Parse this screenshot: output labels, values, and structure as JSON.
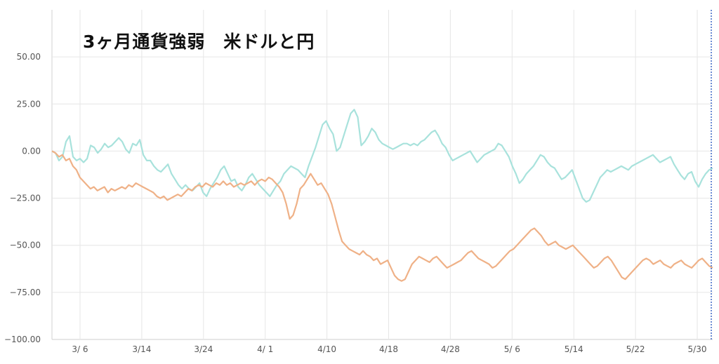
{
  "chart_data": {
    "type": "line",
    "title": "3ヶ月通貨強弱　米ドルと円",
    "xlabel": "",
    "ylabel": "",
    "ylim": [
      -100,
      75
    ],
    "yticks": [
      50,
      25,
      0,
      -25,
      -50,
      -75,
      -100
    ],
    "ytick_labels": [
      "50.00",
      "25.00",
      "0.00",
      "−25.00",
      "−50.00",
      "−75.00",
      "−100.00"
    ],
    "xticks": [
      "3/ 6",
      "3/14",
      "3/24",
      "4/ 1",
      "4/10",
      "4/18",
      "4/28",
      "5/ 6",
      "5/14",
      "5/22",
      "5/30"
    ],
    "grid": true,
    "colors": {
      "usd": "#a8e2dc",
      "jpy": "#efb187",
      "marker": "#3a66c6",
      "grid": "#e6e6e6"
    },
    "series": [
      {
        "key": "usd",
        "values": [
          0,
          -1,
          -5,
          -3,
          5,
          8,
          -3,
          -5,
          -4,
          -6,
          -4,
          3,
          2,
          -1,
          1,
          4,
          2,
          3,
          5,
          7,
          5,
          1,
          -1,
          4,
          3,
          6,
          -2,
          -5,
          -5,
          -8,
          -10,
          -11,
          -9,
          -7,
          -12,
          -15,
          -18,
          -20,
          -18,
          -20,
          -21,
          -19,
          -17,
          -22,
          -24,
          -20,
          -17,
          -14,
          -10,
          -8,
          -12,
          -16,
          -15,
          -19,
          -21,
          -18,
          -14,
          -12,
          -15,
          -18,
          -20,
          -22,
          -24,
          -21,
          -18,
          -16,
          -12,
          -10,
          -8,
          -9,
          -10,
          -12,
          -14,
          -8,
          -3,
          2,
          8,
          14,
          16,
          12,
          9,
          0,
          2,
          8,
          14,
          20,
          22,
          18,
          3,
          5,
          8,
          12,
          10,
          6,
          4,
          3,
          2,
          1,
          2,
          3,
          4,
          4,
          3,
          4,
          3,
          5,
          6,
          8,
          10,
          11,
          8,
          4,
          2,
          -2,
          -5,
          -4,
          -3,
          -2,
          -1,
          0,
          -3,
          -6,
          -4,
          -2,
          -1,
          0,
          1,
          4,
          3,
          0,
          -3,
          -8,
          -12,
          -17,
          -15,
          -12,
          -10,
          -8,
          -5,
          -2,
          -3,
          -6,
          -8,
          -9,
          -12,
          -15,
          -14,
          -12,
          -10,
          -15,
          -20,
          -25,
          -27,
          -26,
          -22,
          -18,
          -14,
          -12,
          -10,
          -11,
          -10,
          -9,
          -8,
          -9,
          -10,
          -8,
          -7,
          -6,
          -5,
          -4,
          -3,
          -2,
          -4,
          -6,
          -5,
          -4,
          -3,
          -7,
          -10,
          -13,
          -15,
          -12,
          -11,
          -16,
          -19,
          -15,
          -12,
          -10,
          -9
        ]
      },
      {
        "key": "jpy",
        "values": [
          0,
          -1,
          -3,
          -2,
          -5,
          -4,
          -8,
          -10,
          -14,
          -16,
          -18,
          -20,
          -19,
          -21,
          -20,
          -19,
          -22,
          -20,
          -21,
          -20,
          -19,
          -20,
          -18,
          -19,
          -17,
          -18,
          -19,
          -20,
          -21,
          -22,
          -24,
          -25,
          -24,
          -26,
          -25,
          -24,
          -23,
          -24,
          -22,
          -20,
          -21,
          -19,
          -18,
          -19,
          -17,
          -18,
          -19,
          -17,
          -18,
          -16,
          -18,
          -17,
          -19,
          -18,
          -17,
          -18,
          -17,
          -16,
          -18,
          -16,
          -15,
          -16,
          -14,
          -15,
          -17,
          -19,
          -22,
          -28,
          -36,
          -34,
          -28,
          -20,
          -18,
          -15,
          -12,
          -15,
          -18,
          -17,
          -20,
          -23,
          -28,
          -35,
          -42,
          -48,
          -50,
          -52,
          -53,
          -54,
          -55,
          -53,
          -55,
          -56,
          -58,
          -57,
          -60,
          -59,
          -58,
          -62,
          -66,
          -68,
          -69,
          -68,
          -64,
          -60,
          -58,
          -56,
          -57,
          -58,
          -59,
          -57,
          -56,
          -58,
          -60,
          -62,
          -61,
          -60,
          -59,
          -58,
          -56,
          -54,
          -53,
          -55,
          -57,
          -58,
          -59,
          -60,
          -62,
          -61,
          -59,
          -57,
          -55,
          -53,
          -52,
          -50,
          -48,
          -46,
          -44,
          -42,
          -41,
          -43,
          -45,
          -48,
          -50,
          -49,
          -48,
          -50,
          -51,
          -52,
          -51,
          -50,
          -52,
          -54,
          -56,
          -58,
          -60,
          -62,
          -61,
          -59,
          -57,
          -56,
          -58,
          -61,
          -64,
          -67,
          -68,
          -66,
          -64,
          -62,
          -60,
          -58,
          -57,
          -58,
          -60,
          -59,
          -58,
          -60,
          -61,
          -62,
          -60,
          -59,
          -58,
          -60,
          -61,
          -62,
          -60,
          -58,
          -57,
          -59,
          -61,
          -62
        ]
      }
    ]
  }
}
